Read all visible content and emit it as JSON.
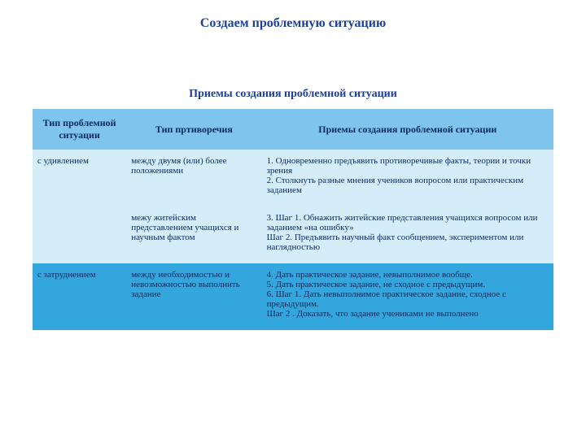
{
  "title": {
    "main": "Создаем проблемную ситуацию",
    "sub": "Приемы создания проблемной ситуации",
    "color": "#1f3f93",
    "main_fontsize": "16px",
    "sub_fontsize": "14px"
  },
  "table": {
    "header_bg": "#7ec4ec",
    "header_color": "#0a2a5c",
    "th_fontsize": "12px",
    "td_fontsize": "11px",
    "text_color": "#0a2a5c",
    "row_bg_a": "#d5ecf9",
    "row_bg_b": "#33a6dd",
    "columns": [
      "Тип проблемной ситуации",
      "Тип пртиворечия",
      "Приемы создания проблемной ситуации"
    ],
    "rows": [
      {
        "bg_key": "a",
        "type": "с удивлением",
        "contradiction": "между двумя (или) более положениями",
        "method": "1. Одновременно предъявить противоречивые факты, теории и точки зрения\n2. Столкнуть разные мнения учеников вопросом или практическим заданием"
      },
      {
        "bg_key": "a",
        "type": "",
        "contradiction": "межу житейским представлением учащихся  и научным фактом",
        "method": "3. Шаг 1. Обнажить житейские представления учащихся вопросом или заданием «на ошибку»\n     Шаг 2.  Предъявить научный факт сообщением, экспериментом или наглядностью"
      },
      {
        "bg_key": "b",
        "type": "с затруднением",
        "contradiction": "между необходимостью и невозможностью выполнить задание",
        "method": "4. Дать практическое задание, невыполнимое вообще.\n5. Дать практическое задание, не сходное с предыдущим.\n6. Шаг 1. Дать невыполнимое практическое задание, сходное с предыдущим.\n   Шаг 2 . Доказать, что задание учениками не выполнено"
      }
    ]
  }
}
